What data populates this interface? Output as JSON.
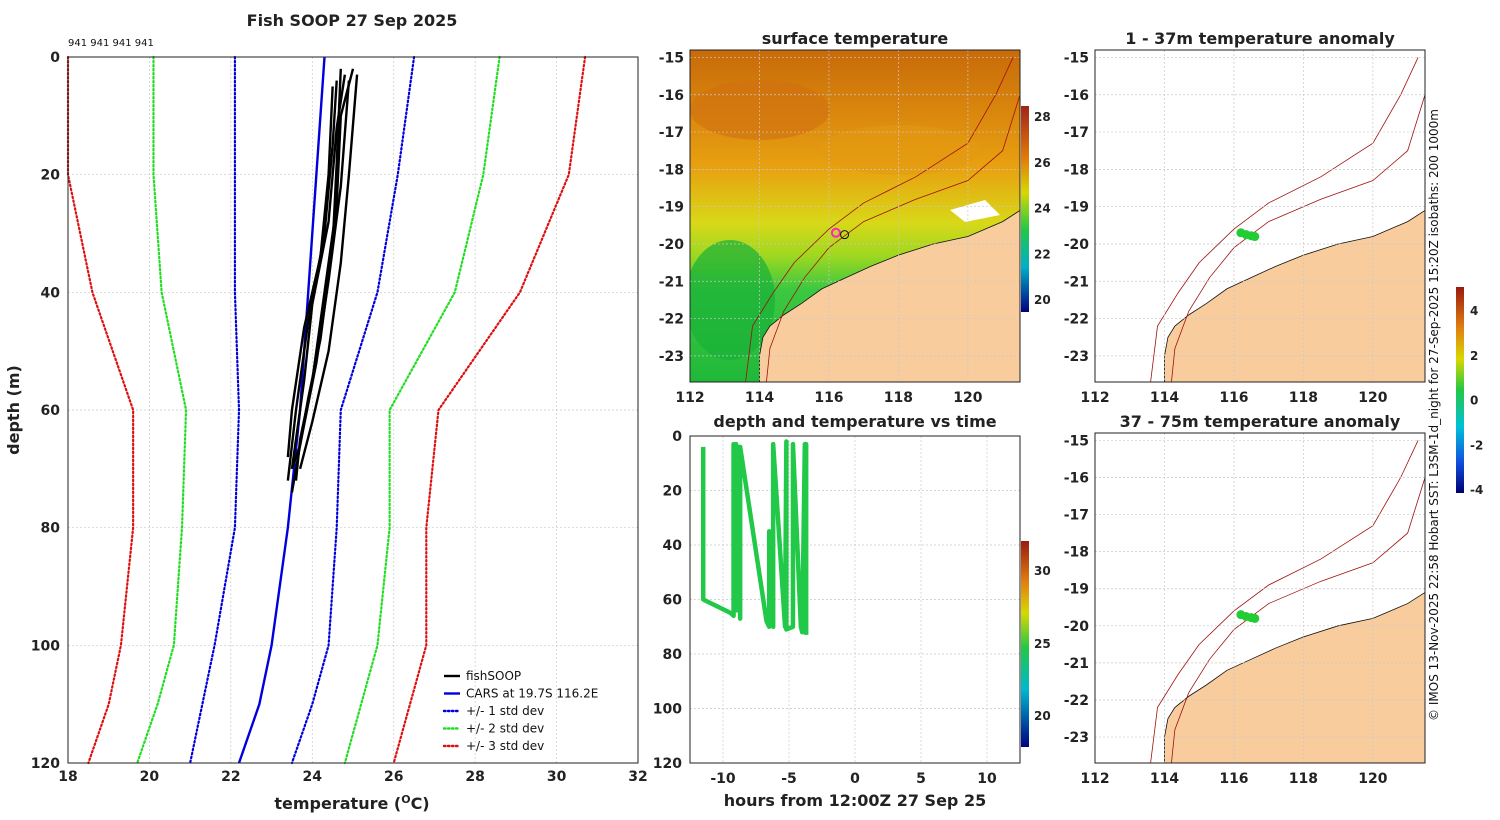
{
  "chart_data": [
    {
      "type": "line",
      "title": "Fish SOOP 27 Sep 2025",
      "profile_ids": "941 941 941 941",
      "xlabel": "temperature (",
      "xlabel_unit": "O",
      "xlabel_suffix": "C)",
      "ylabel": "depth (m)",
      "xlim": [
        18,
        32
      ],
      "ylim": [
        0,
        120
      ],
      "xticks": [
        "18",
        "20",
        "22",
        "24",
        "26",
        "28",
        "30",
        "32"
      ],
      "yticks": [
        "0",
        "20",
        "40",
        "60",
        "80",
        "100",
        "120"
      ],
      "depth": [
        0,
        20,
        40,
        60,
        80,
        100,
        110,
        120
      ],
      "series": [
        {
          "name": "fishSOOP",
          "color": "#000000",
          "style": "solid"
        },
        {
          "name": "CARS at 19.7S 116.2E",
          "color": "#0000dd",
          "style": "solid",
          "values": [
            24.3,
            24.1,
            23.9,
            23.7,
            23.4,
            23.0,
            22.7,
            22.2
          ]
        },
        {
          "name": "+/- 1 std dev",
          "color": "#0000dd",
          "style": "dotted",
          "low": [
            22.1,
            22.1,
            22.1,
            22.2,
            22.1,
            21.6,
            21.3,
            21.0
          ],
          "high": [
            26.5,
            26.1,
            25.6,
            24.7,
            24.6,
            24.4,
            24.0,
            23.5
          ]
        },
        {
          "name": "+/- 2 std dev",
          "color": "#22dd22",
          "style": "dotted",
          "low": [
            20.1,
            20.1,
            20.3,
            20.9,
            20.8,
            20.6,
            20.2,
            19.7
          ],
          "high": [
            28.6,
            28.2,
            27.5,
            25.9,
            25.9,
            25.6,
            25.2,
            24.8
          ]
        },
        {
          "name": "+/- 3 std dev",
          "color": "#dd1111",
          "style": "dotted",
          "low": [
            18.0,
            18.0,
            18.6,
            19.6,
            19.6,
            19.3,
            19.0,
            18.5
          ],
          "high": [
            30.7,
            30.3,
            29.1,
            27.1,
            26.8,
            26.8,
            26.4,
            26.0
          ]
        }
      ]
    },
    {
      "type": "heatmap",
      "title": "surface temperature",
      "xticks": [
        "112",
        "114",
        "116",
        "118",
        "120"
      ],
      "yticks": [
        "-15",
        "-16",
        "-17",
        "-18",
        "-19",
        "-20",
        "-21",
        "-22",
        "-23"
      ],
      "colorbar_ticks": [
        "28",
        "26",
        "24",
        "22",
        "20"
      ],
      "xlim": [
        112,
        121.5
      ],
      "ylim": [
        -23.7,
        -14.8
      ],
      "vessel_position": [
        116.2,
        -19.7
      ]
    },
    {
      "type": "scatter",
      "title": "depth and temperature vs time",
      "xlabel": "hours from 12:00Z 27 Sep 25",
      "xlim": [
        -12.5,
        12.5
      ],
      "ylim": [
        0,
        120
      ],
      "xticks": [
        "-10",
        "-5",
        "0",
        "5",
        "10"
      ],
      "yticks": [
        "0",
        "20",
        "40",
        "60",
        "80",
        "100",
        "120"
      ],
      "colorbar_ticks": [
        "30",
        "25",
        "20"
      ],
      "trace_hours": [
        -11.5,
        -11.5,
        -9.4,
        -9.2,
        -9.2,
        -9.0,
        -9.0,
        -8.7,
        -8.7,
        -6.7,
        -6.5,
        -6.5,
        -6.2,
        -6.2,
        -5.3,
        -5.2,
        -5.2,
        -4.7,
        -4.7,
        -4.1,
        -4.0,
        -3.8,
        -3.7,
        -3.7
      ],
      "trace_depths": [
        4,
        60,
        65,
        66,
        3,
        64,
        3,
        67,
        4,
        68,
        70,
        35,
        70,
        3,
        70,
        2,
        71,
        70,
        3,
        70,
        72,
        3,
        3,
        73
      ]
    },
    {
      "type": "heatmap",
      "title": "1 - 37m temperature anomaly",
      "xticks": [
        "112",
        "114",
        "116",
        "118",
        "120"
      ],
      "yticks": [
        "-15",
        "-16",
        "-17",
        "-18",
        "-19",
        "-20",
        "-21",
        "-22",
        "-23"
      ],
      "points_lon": [
        116.2,
        116.35,
        116.5,
        116.6
      ],
      "points_lat": [
        -19.7,
        -19.75,
        -19.78,
        -19.8
      ]
    },
    {
      "type": "heatmap",
      "title": "37 - 75m temperature anomaly",
      "xticks": [
        "112",
        "114",
        "116",
        "118",
        "120"
      ],
      "yticks": [
        "-15",
        "-16",
        "-17",
        "-18",
        "-19",
        "-20",
        "-21",
        "-22",
        "-23"
      ],
      "colorbar_ticks": [
        "4",
        "2",
        "0",
        "-2",
        "-4"
      ],
      "points_lon": [
        116.2,
        116.35,
        116.5,
        116.6
      ],
      "points_lat": [
        -19.7,
        -19.75,
        -19.78,
        -19.8
      ]
    }
  ],
  "credit": "© IMOS 13-Nov-2025 22:58 Hobart SST: L3SM-1d_night for 27-Sep-2025 15:20Z isobaths: 200  1000m",
  "colors": {
    "land": "#f9cc9d",
    "isobath": "#a01010",
    "points": "#22cc33"
  }
}
